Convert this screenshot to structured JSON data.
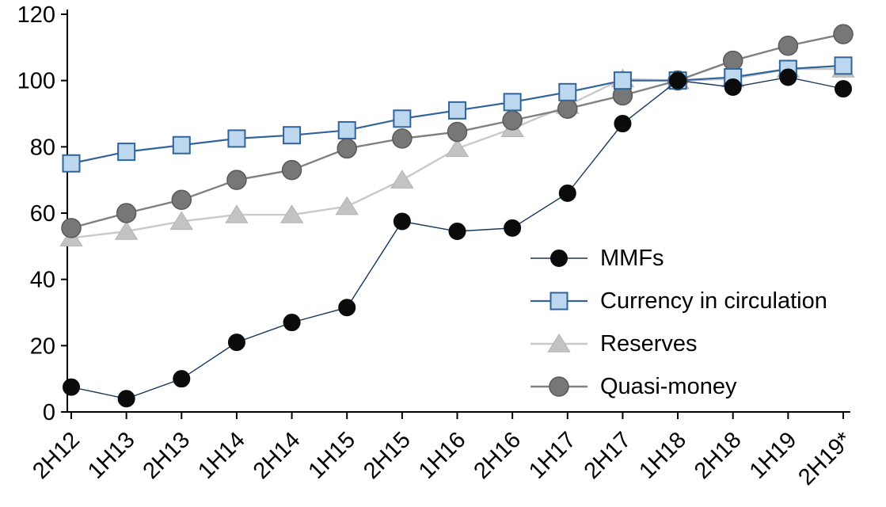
{
  "chart_data": {
    "type": "line",
    "title": "",
    "xlabel": "",
    "ylabel": "",
    "grid": false,
    "legend_position": "center-right",
    "background": "#ffffff",
    "axis_color": "#000000",
    "ylim": [
      0,
      120
    ],
    "yticks": [
      0,
      20,
      40,
      60,
      80,
      100,
      120
    ],
    "categories": [
      "2H12",
      "1H13",
      "2H13",
      "1H14",
      "2H14",
      "1H15",
      "2H15",
      "1H16",
      "2H16",
      "1H17",
      "2H17",
      "1H18",
      "2H18",
      "1H19",
      "2H19*"
    ],
    "series": [
      {
        "name": "MMFs",
        "marker": "circle",
        "marker_size": 21,
        "marker_color": "#0b0b0b",
        "marker_border": "#0b0b0b",
        "marker_border_width": 1,
        "line_color": "#17375e",
        "line_width": 1.4,
        "values": [
          7.5,
          4,
          10,
          21,
          27,
          31.5,
          57.5,
          54.5,
          55.5,
          66,
          87,
          100,
          98,
          101,
          97.5
        ]
      },
      {
        "name": "Currency in circulation",
        "marker": "square",
        "marker_size": 21,
        "marker_color": "#bdd7ee",
        "marker_border": "#31649b",
        "marker_border_width": 2,
        "line_color": "#31649b",
        "line_width": 2.2,
        "values": [
          75,
          78.5,
          80.5,
          82.5,
          83.5,
          85,
          88.5,
          91,
          93.5,
          96.5,
          100,
          100,
          101,
          103.5,
          104.5
        ]
      },
      {
        "name": "Reserves",
        "marker": "triangle",
        "marker_size": 24,
        "marker_color": "#c3c3c3",
        "marker_border": "#b3b3b3",
        "marker_border_width": 1,
        "line_color": "#c9c9c9",
        "line_width": 2.4,
        "values": [
          52.5,
          54.5,
          57.5,
          59.5,
          59.5,
          62,
          70,
          79.5,
          85.5,
          92.5,
          100.5,
          100,
          100.5,
          103.5,
          103.5
        ]
      },
      {
        "name": "Quasi-money",
        "marker": "circle",
        "marker_size": 24,
        "marker_color": "#777777",
        "marker_border": "#595959",
        "marker_border_width": 1.5,
        "line_color": "#808080",
        "line_width": 2.4,
        "values": [
          55.5,
          60,
          64,
          70,
          73,
          79.5,
          82.5,
          84.5,
          88,
          91.5,
          95.5,
          100,
          106,
          110.5,
          114
        ]
      }
    ]
  }
}
